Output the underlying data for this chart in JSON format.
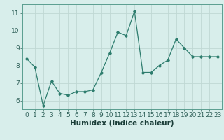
{
  "x": [
    0,
    1,
    2,
    3,
    4,
    5,
    6,
    7,
    8,
    9,
    10,
    11,
    12,
    13,
    14,
    15,
    16,
    17,
    18,
    19,
    20,
    21,
    22,
    23
  ],
  "y": [
    8.4,
    7.9,
    5.7,
    7.1,
    6.4,
    6.3,
    6.5,
    6.5,
    6.6,
    7.6,
    8.7,
    9.9,
    9.7,
    11.1,
    7.6,
    7.6,
    8.0,
    8.3,
    9.5,
    9.0,
    8.5,
    8.5,
    8.5,
    8.5
  ],
  "xlabel": "Humidex (Indice chaleur)",
  "ylim": [
    5.5,
    11.5
  ],
  "xlim": [
    -0.5,
    23.5
  ],
  "yticks": [
    6,
    7,
    8,
    9,
    10,
    11
  ],
  "xticks": [
    0,
    1,
    2,
    3,
    4,
    5,
    6,
    7,
    8,
    9,
    10,
    11,
    12,
    13,
    14,
    15,
    16,
    17,
    18,
    19,
    20,
    21,
    22,
    23
  ],
  "line_color": "#2e7d6e",
  "bg_color": "#d8eeeb",
  "grid_color": "#c0d8d4",
  "tick_label_fontsize": 6.5,
  "xlabel_fontsize": 7.5
}
